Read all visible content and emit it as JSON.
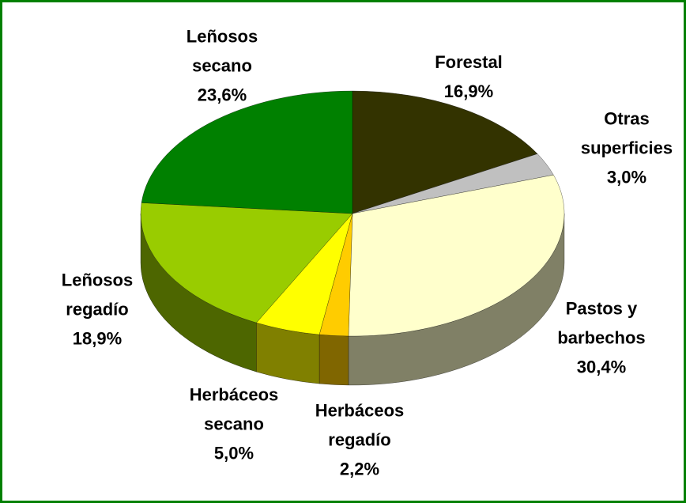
{
  "chart_data": {
    "type": "pie",
    "categories": [
      "Forestal",
      "Otras superficies",
      "Pastos y barbechos",
      "Herbáceos regadío",
      "Herbáceos secano",
      "Leñosos regadío",
      "Leñosos secano"
    ],
    "values": [
      16.9,
      3.0,
      30.4,
      2.2,
      5.0,
      18.9,
      23.6
    ],
    "value_labels": [
      "16,9%",
      "3,0%",
      "30,4%",
      "2,2%",
      "5,0%",
      "18,9%",
      "23,6%"
    ],
    "colors": [
      "#333300",
      "#c0c0c0",
      "#ffffcc",
      "#ffcc00",
      "#ffff00",
      "#99cc00",
      "#008000"
    ]
  }
}
